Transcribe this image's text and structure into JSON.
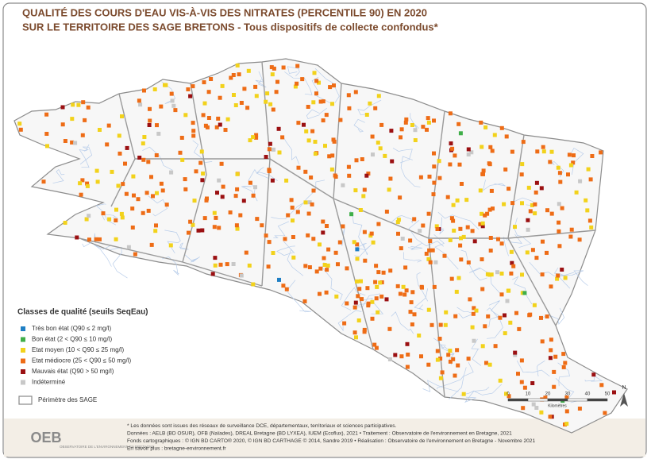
{
  "header": {
    "title_line1": "QUALITÉ DES COURS D'EAU VIS-À-VIS DES NITRATES (PERCENTILE 90) EN 2020",
    "title_line2": "SUR LE TERRITOIRE DES SAGE BRETONS - Tous dispositifs de collecte confondus*"
  },
  "legend": {
    "title": "Classes de qualité (seuils SeqEau)",
    "items": [
      {
        "label": "Très bon état (Q90 ≤ 2 mg/l)",
        "color": "#1f7fc4"
      },
      {
        "label": "Bon état (2 < Q90 ≤ 10 mg/l)",
        "color": "#3fae49"
      },
      {
        "label": "Etat moyen (10 < Q90 ≤ 25 mg/l)",
        "color": "#f2d21b"
      },
      {
        "label": "Etat médiocre (25 < Q90 ≤ 50 mg/l)",
        "color": "#ee6c16"
      },
      {
        "label": "Mauvais état (Q90 > 50 mg/l)",
        "color": "#9b1012"
      },
      {
        "label": "Indéterminé",
        "color": "#c8c8c8"
      }
    ],
    "perimeter": "Périmètre des SAGE"
  },
  "scale_bar": {
    "labels": [
      "0",
      "10",
      "20",
      "30",
      "40",
      "50"
    ],
    "unit": "Kilomètres",
    "north": "N"
  },
  "footer": {
    "lines": [
      "* Les données sont issues des réseaux de surveillance DCE, départementaux, territoriaux et sciences participatives.",
      "Données : AELB (BD OSUR), OFB (Naïades), DREAL Bretagne (BD LYXEA), IUEM (Ecoflux), 2021 • Traitement : Observatoire de l'environnement en Bretagne, 2021",
      "Fonds cartographiques : © IGN BD CARTO® 2020, © IGN BD CARTHAGE © 2014, Sandre 2019 • Réalisation : Observatoire de l'environnement en Bretagne - Novembre 2021",
      "En savoir plus : bretagne-environnement.fr"
    ],
    "logo": "OEB",
    "logo_sub": "OBSERVATOIRE DE L'ENVIRONNEMENT EN BRETAGNE"
  }
}
